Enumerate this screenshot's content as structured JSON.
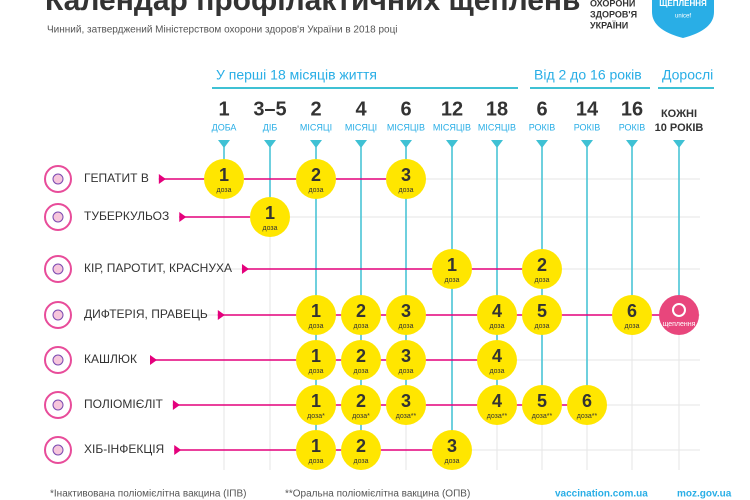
{
  "header": {
    "title": "Календар профілактичних щеплень",
    "subtitle": "Чинний, затверджений Міністерством охорони здоров'я України в 2018 році",
    "ministry": [
      "ОХОРОНИ",
      "ЗДОРОВ'Я",
      "УКРАЇНИ"
    ],
    "badge": [
      "ЩЕПЛЕННЯ",
      "unicef"
    ]
  },
  "groups": [
    "У перші 18 місяців життя",
    "Від 2 до 16 років",
    "Дорослі"
  ],
  "ages": [
    {
      "num": "1",
      "unit": "ДОБА"
    },
    {
      "num": "3–5",
      "unit": "ДІБ"
    },
    {
      "num": "2",
      "unit": "МІСЯЦІ"
    },
    {
      "num": "4",
      "unit": "МІСЯЦІ"
    },
    {
      "num": "6",
      "unit": "МІСЯЦІВ"
    },
    {
      "num": "12",
      "unit": "МІСЯЦІВ"
    },
    {
      "num": "18",
      "unit": "МІСЯЦІВ"
    },
    {
      "num": "6",
      "unit": "РОКІВ"
    },
    {
      "num": "14",
      "unit": "РОКІВ"
    },
    {
      "num": "16",
      "unit": "РОКІВ"
    },
    {
      "num": "КОЖНІ",
      "unit": "10 РОКІВ"
    }
  ],
  "vaccines": [
    {
      "name": "ГЕПАТИТ В",
      "cells": [
        {
          "num": "1",
          "label": "доза"
        },
        null,
        {
          "num": "2",
          "label": "доза"
        },
        null,
        {
          "num": "3",
          "label": "доза"
        },
        null,
        null,
        null,
        null,
        null,
        null
      ]
    },
    {
      "name": "ТУБЕРКУЛЬОЗ",
      "cells": [
        null,
        {
          "num": "1",
          "label": "доза"
        },
        null,
        null,
        null,
        null,
        null,
        null,
        null,
        null,
        null
      ]
    },
    {
      "name": "КІР, ПАРОТИТ, КРАСНУХА",
      "cells": [
        null,
        null,
        null,
        null,
        null,
        {
          "num": "1",
          "label": "доза"
        },
        null,
        {
          "num": "2",
          "label": "доза"
        },
        null,
        null,
        null
      ]
    },
    {
      "name": "ДИФТЕРІЯ, ПРАВЕЦЬ",
      "cells": [
        null,
        null,
        {
          "num": "1",
          "label": "доза"
        },
        {
          "num": "2",
          "label": "доза"
        },
        {
          "num": "3",
          "label": "доза"
        },
        null,
        {
          "num": "4",
          "label": "доза"
        },
        {
          "num": "5",
          "label": "доза"
        },
        null,
        {
          "num": "6",
          "label": "доза"
        },
        {
          "label": "щеплення",
          "color": "#e8467c"
        }
      ]
    },
    {
      "name": "КАШЛЮК",
      "cells": [
        null,
        null,
        {
          "num": "1",
          "label": "доза"
        },
        {
          "num": "2",
          "label": "доза"
        },
        {
          "num": "3",
          "label": "доза"
        },
        null,
        {
          "num": "4",
          "label": "доза"
        },
        null,
        null,
        null,
        null
      ]
    },
    {
      "name": "ПОЛІОМІЄЛІТ",
      "cells": [
        null,
        null,
        {
          "num": "1",
          "label": "доза*"
        },
        {
          "num": "2",
          "label": "доза*"
        },
        {
          "num": "3",
          "label": "доза**"
        },
        null,
        {
          "num": "4",
          "label": "доза**"
        },
        {
          "num": "5",
          "label": "доза**"
        },
        {
          "num": "6",
          "label": "доза**"
        },
        null,
        null
      ]
    },
    {
      "name": "ХІБ-ІНФЕКЦІЯ",
      "cells": [
        null,
        null,
        {
          "num": "1",
          "label": "доза"
        },
        {
          "num": "2",
          "label": "доза"
        },
        null,
        {
          "num": "3",
          "label": "доза"
        },
        null,
        null,
        null,
        null,
        null
      ]
    }
  ],
  "footer": {
    "notes": [
      "*Інактивована поліомієлітна вакцина (ІПВ)",
      "**Оральна поліомієлітна вакцина (ОПВ)"
    ],
    "links": [
      "vaccination.com.ua",
      "moz.gov.ua"
    ]
  }
}
